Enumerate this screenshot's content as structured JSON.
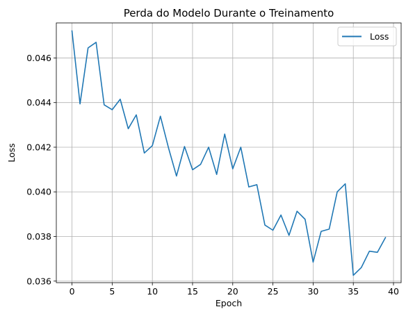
{
  "chart_data": {
    "type": "line",
    "title": "Perda do Modelo Durante o Treinamento",
    "xlabel": "Epoch",
    "ylabel": "Loss",
    "xlim": [
      -1.95,
      40.95
    ],
    "ylim": [
      0.03593,
      0.04757
    ],
    "xticks": [
      0,
      5,
      10,
      15,
      20,
      25,
      30,
      35,
      40
    ],
    "yticks": [
      0.036,
      0.038,
      0.04,
      0.042,
      0.044,
      0.046
    ],
    "ytick_labels": [
      "0.036",
      "0.038",
      "0.040",
      "0.042",
      "0.044",
      "0.046"
    ],
    "grid": true,
    "legend_position": "top-right",
    "series": [
      {
        "name": "Loss",
        "color": "#1f77b4",
        "x": [
          0,
          1,
          2,
          3,
          4,
          5,
          6,
          7,
          8,
          9,
          10,
          11,
          12,
          13,
          14,
          15,
          16,
          17,
          18,
          19,
          20,
          21,
          22,
          23,
          24,
          25,
          26,
          27,
          28,
          29,
          30,
          31,
          32,
          33,
          34,
          35,
          36,
          37,
          38,
          39
        ],
        "y": [
          0.04721,
          0.04394,
          0.04645,
          0.0467,
          0.0439,
          0.04368,
          0.04415,
          0.04283,
          0.04345,
          0.04174,
          0.04207,
          0.04339,
          0.04198,
          0.04071,
          0.04203,
          0.04099,
          0.04123,
          0.042,
          0.04078,
          0.04259,
          0.04103,
          0.042,
          0.04022,
          0.04032,
          0.03851,
          0.03828,
          0.03896,
          0.03805,
          0.03913,
          0.03877,
          0.03685,
          0.03823,
          0.03833,
          0.04,
          0.04036,
          0.03626,
          0.03661,
          0.03734,
          0.03729,
          0.03795
        ]
      }
    ]
  }
}
